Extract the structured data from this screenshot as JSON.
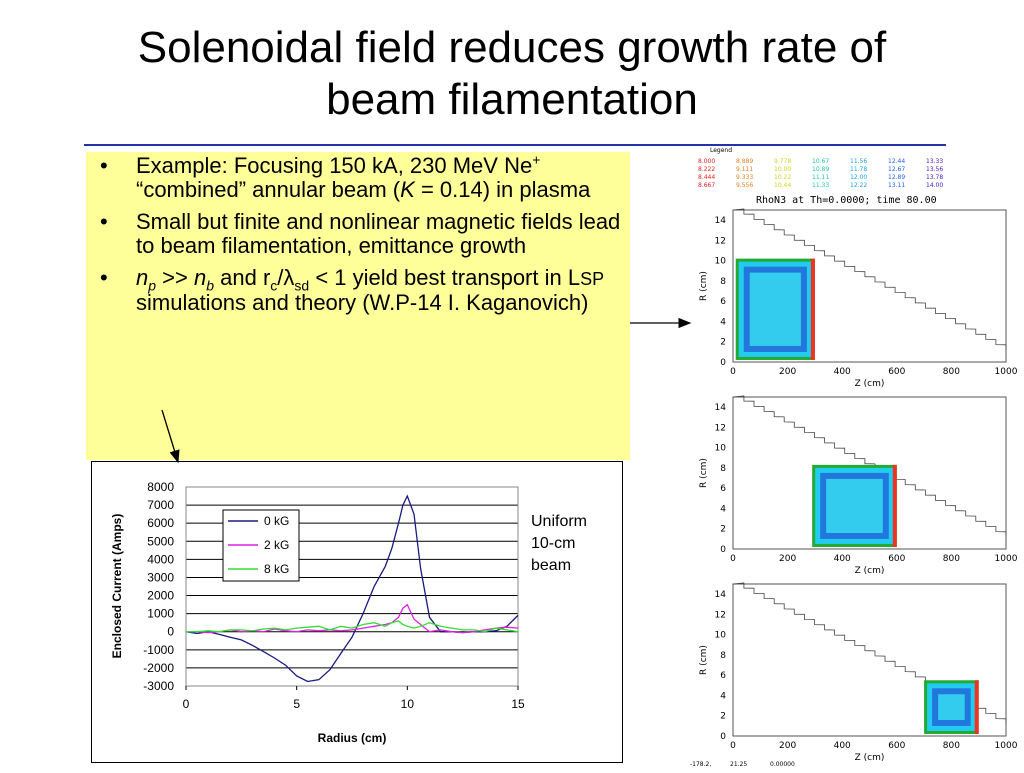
{
  "slide": {
    "title_line1": "Solenoidal field reduces growth rate of",
    "title_line2": "beam filamentation"
  },
  "bullets": {
    "b1_text1": "Example: Focusing 150 kA, 230 MeV Ne",
    "b1_sup": "+",
    "b1_text2": " “combined” annular beam (",
    "b1_k": "K",
    "b1_text3": " = 0.14) in plasma",
    "b2": "Small but finite and nonlinear magnetic fields lead to beam filamentation, emittance growth",
    "b3_np": "n",
    "b3_np_sub": "p",
    "b3_gg": " >> ",
    "b3_nb": "n",
    "b3_nb_sub": "b",
    "b3_and": " and r",
    "b3_c_sub": "c",
    "b3_slash": "/",
    "b3_lambda": "λ",
    "b3_sd_sub": "sd",
    "b3_rest1": " < 1 yield best transport in L",
    "b3_lsp": "SP",
    "b3_rest2": " simulations and theory (W.P-14 I. Kaganovich)"
  },
  "note": {
    "line1": "Uniform",
    "line2": "10-cm",
    "line3": "beam"
  },
  "chart_data": {
    "type": "line",
    "xlabel": "Radius (cm)",
    "ylabel": "Enclosed Current (Amps)",
    "xlim": [
      0,
      15
    ],
    "ylim": [
      -3000,
      8000
    ],
    "xticks": [
      "0",
      "5",
      "10",
      "15"
    ],
    "yticks": [
      "8000",
      "7000",
      "6000",
      "5000",
      "4000",
      "3000",
      "2000",
      "1000",
      "0",
      "-1000",
      "-2000",
      "-3000"
    ],
    "grid": "horizontal",
    "legend_position": "top-left",
    "series": [
      {
        "name": "0 kG",
        "color": "#1a1a80",
        "x": [
          0,
          0.5,
          1,
          1.5,
          2,
          2.5,
          3,
          3.5,
          4,
          4.5,
          5,
          5.5,
          6,
          6.5,
          7,
          7.5,
          8,
          8.5,
          9,
          9.3,
          9.6,
          9.8,
          10,
          10.3,
          10.6,
          11,
          11.5,
          12,
          12.5,
          13,
          13.5,
          14,
          14.5,
          15
        ],
        "y": [
          0,
          -100,
          0,
          -150,
          -300,
          -450,
          -750,
          -1100,
          -1450,
          -1850,
          -2450,
          -2750,
          -2650,
          -2100,
          -1200,
          -300,
          1000,
          2500,
          3600,
          4600,
          6000,
          7000,
          7500,
          6500,
          3500,
          800,
          0,
          0,
          -50,
          0,
          0,
          50,
          300,
          900
        ]
      },
      {
        "name": "2 kG",
        "color": "#e020e0",
        "x": [
          0,
          0.5,
          1,
          1.5,
          2,
          2.5,
          3,
          3.5,
          4,
          4.5,
          5,
          5.5,
          6,
          6.5,
          7,
          7.5,
          8,
          8.5,
          9,
          9.3,
          9.6,
          9.8,
          10,
          10.3,
          10.6,
          11,
          11.5,
          12,
          12.5,
          13,
          13.5,
          14,
          14.5,
          15
        ],
        "y": [
          0,
          0,
          -50,
          0,
          100,
          0,
          50,
          0,
          150,
          50,
          0,
          100,
          50,
          100,
          50,
          100,
          200,
          300,
          400,
          500,
          800,
          1300,
          1500,
          700,
          400,
          0,
          100,
          0,
          -50,
          0,
          100,
          200,
          250,
          200
        ]
      },
      {
        "name": "8 kG",
        "color": "#33dd33",
        "x": [
          0,
          0.5,
          1,
          1.5,
          2,
          2.5,
          3,
          3.5,
          4,
          4.5,
          5,
          5.5,
          6,
          6.5,
          7,
          7.5,
          8,
          8.5,
          9,
          9.3,
          9.6,
          9.8,
          10,
          10.3,
          10.6,
          11,
          11.5,
          12,
          12.5,
          13,
          13.5,
          14,
          14.5,
          15
        ],
        "y": [
          0,
          0,
          50,
          0,
          100,
          100,
          50,
          150,
          200,
          100,
          200,
          250,
          300,
          100,
          300,
          200,
          400,
          500,
          300,
          500,
          600,
          400,
          300,
          200,
          300,
          500,
          300,
          200,
          100,
          100,
          0,
          200,
          100,
          0
        ]
      }
    ]
  },
  "sim": {
    "legend_title": "Legend",
    "legend_values": [
      [
        "8.000",
        "8.889",
        "9.778",
        "10.67",
        "11.56",
        "12.44",
        "13.33"
      ],
      [
        "8.222",
        "9.111",
        "10.00",
        "10.89",
        "11.78",
        "12.67",
        "13.56"
      ],
      [
        "8.444",
        "9.333",
        "10.22",
        "11.11",
        "12.00",
        "12.89",
        "13.78"
      ],
      [
        "8.667",
        "9.556",
        "10.44",
        "11.33",
        "12.22",
        "13.11",
        "14.00"
      ]
    ],
    "legend_colors": [
      "#e02020",
      "#e08020",
      "#c8d820",
      "#20c8a0",
      "#20a0e0",
      "#2060e0",
      "#4020c0"
    ],
    "panel_title": "RhoN3 at Th=0.0000; time 80.00",
    "ylabel": "R (cm)",
    "xlabel": "Z (cm)",
    "yticks": [
      "14",
      "12",
      "10",
      "8",
      "6",
      "4",
      "2",
      "0"
    ],
    "xticks": [
      "0",
      "200",
      "400",
      "600",
      "800",
      "1000"
    ],
    "footer": [
      "-178.2,",
      "21.25",
      "0.00000"
    ]
  }
}
